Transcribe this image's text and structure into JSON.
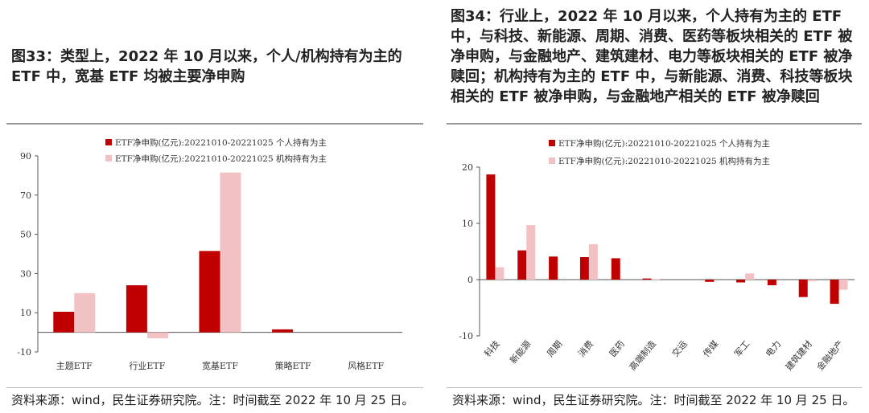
{
  "left": {
    "title": "图33：类型上，2022 年 10 月以来，个人/机构持有为主的 ETF 中，宽基 ETF 均被主要净申购",
    "source": "资料来源：wind，民生证券研究院。注：时间截至 2022 年 10 月 25 日。"
  },
  "right": {
    "title": "图34：行业上，2022 年 10 月以来，个人持有为主的 ETF 中，与科技、新能源、周期、消费、医药等板块相关的 ETF 被净申购，与金融地产、建筑建材、电力等板块相关的 ETF 被净赎回；机构持有为主的 ETF 中，与新能源、消费、科技等板块相关的 ETF 被净申购，与金融地产相关的 ETF 被净赎回",
    "source": "资料来源：wind，民生证券研究院。注：时间截至 2022 年 10 月 25 日。"
  },
  "colors": {
    "personal": "#c00000",
    "institution": "#f2c1c3"
  },
  "chart_data": [
    {
      "type": "bar",
      "categories": [
        "主题ETF",
        "行业ETF",
        "宽基ETF",
        "策略ETF",
        "风格ETF"
      ],
      "series": [
        {
          "name": "ETF净申购(亿元):20221010-20221025 个人持有为主",
          "values": [
            10.5,
            24,
            41.5,
            1.5,
            0
          ]
        },
        {
          "name": "ETF净申购(亿元):20221010-20221025 机构持有为主",
          "values": [
            20,
            -3,
            81.5,
            0,
            0
          ]
        }
      ],
      "yticks": [
        -10,
        10,
        30,
        50,
        70,
        90
      ],
      "ylim": [
        -10,
        90
      ],
      "legend": "top"
    },
    {
      "type": "bar",
      "categories": [
        "科技",
        "新能源",
        "周期",
        "消费",
        "医药",
        "高端制造",
        "交运",
        "传媒",
        "军工",
        "电力",
        "建筑建材",
        "金融地产"
      ],
      "series": [
        {
          "name": "ETF净申购(亿元):20221010-20221025 个人持有为主",
          "values": [
            18.7,
            5.2,
            4.1,
            4.0,
            3.8,
            0.2,
            0,
            -0.4,
            -0.5,
            -1.0,
            -3.1,
            -4.3
          ]
        },
        {
          "name": "ETF净申购(亿元):20221010-20221025 机构持有为主",
          "values": [
            2.2,
            9.7,
            0,
            6.3,
            0,
            0.1,
            0,
            0,
            1.1,
            0,
            -0.3,
            -1.8
          ]
        }
      ],
      "yticks": [
        -10,
        0,
        10,
        20
      ],
      "ylim": [
        -10,
        20
      ],
      "legend": "top"
    }
  ]
}
